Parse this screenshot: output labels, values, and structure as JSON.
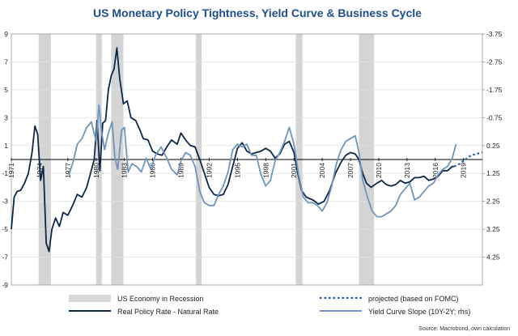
{
  "chart_data": {
    "type": "line",
    "title": "US Monetary Policy Tightness, Yield Curve & Business Cycle",
    "source": "Source: Macrobond, own calculation",
    "x_range": [
      1971,
      2021
    ],
    "ylim_left": [
      -9,
      9
    ],
    "ylim_right": [
      5.25,
      -3.75
    ],
    "x_ticks": [
      "1971",
      "1974",
      "1977",
      "1980",
      "1983",
      "1986",
      "1989",
      "1992",
      "1995",
      "1998",
      "2001",
      "2004",
      "2007",
      "2010",
      "2013",
      "2016",
      "2019"
    ],
    "y_ticks_left": [
      "9",
      "7",
      "5",
      "3",
      "1",
      "-1",
      "-3",
      "-5",
      "-7",
      "-9"
    ],
    "y_ticks_right": [
      "-3.75",
      "-2.75",
      "-1.75",
      "-0.75",
      "0.25",
      "1.25",
      "2.25",
      "3.25",
      "4.25"
    ],
    "grid": true,
    "legend_position": "bottom",
    "recessions": [
      [
        1973.9,
        1975.2
      ],
      [
        1980.0,
        1980.6
      ],
      [
        1981.6,
        1982.9
      ],
      [
        1990.6,
        1991.2
      ],
      [
        2001.2,
        2001.9
      ],
      [
        2007.9,
        2009.5
      ]
    ],
    "series": [
      {
        "name": "Real Policy Rate - Natural Rate",
        "axis": "left",
        "color": "#0d2748",
        "points": [
          [
            1971,
            -5.0
          ],
          [
            1971.3,
            -2.7
          ],
          [
            1971.6,
            -2.3
          ],
          [
            1972.0,
            -2.2
          ],
          [
            1972.4,
            -1.7
          ],
          [
            1972.8,
            -1.0
          ],
          [
            1973.2,
            0.5
          ],
          [
            1973.5,
            2.4
          ],
          [
            1973.8,
            1.8
          ],
          [
            1974.1,
            -1.5
          ],
          [
            1974.4,
            -0.5
          ],
          [
            1974.7,
            -6.0
          ],
          [
            1975.0,
            -6.6
          ],
          [
            1975.3,
            -5.0
          ],
          [
            1975.7,
            -4.2
          ],
          [
            1976.1,
            -4.8
          ],
          [
            1976.5,
            -3.8
          ],
          [
            1977.0,
            -4.0
          ],
          [
            1977.5,
            -3.3
          ],
          [
            1978.0,
            -2.5
          ],
          [
            1978.5,
            -2.7
          ],
          [
            1979.0,
            -2.0
          ],
          [
            1979.4,
            -1.0
          ],
          [
            1979.8,
            0.0
          ],
          [
            1980.1,
            2.8
          ],
          [
            1980.4,
            -0.8
          ],
          [
            1980.7,
            2.6
          ],
          [
            1981.0,
            2.8
          ],
          [
            1981.3,
            5.0
          ],
          [
            1981.6,
            6.0
          ],
          [
            1981.9,
            6.5
          ],
          [
            1982.2,
            8.0
          ],
          [
            1982.5,
            5.8
          ],
          [
            1982.9,
            4.0
          ],
          [
            1983.3,
            4.2
          ],
          [
            1983.7,
            3.0
          ],
          [
            1984.2,
            2.8
          ],
          [
            1984.6,
            2.2
          ],
          [
            1985.0,
            1.5
          ],
          [
            1985.5,
            1.4
          ],
          [
            1986.0,
            0.6
          ],
          [
            1986.5,
            0.4
          ],
          [
            1987.0,
            0.3
          ],
          [
            1987.5,
            0.9
          ],
          [
            1988.0,
            1.4
          ],
          [
            1988.6,
            1.1
          ],
          [
            1989.0,
            1.9
          ],
          [
            1989.5,
            1.4
          ],
          [
            1990.0,
            1.0
          ],
          [
            1990.5,
            0.9
          ],
          [
            1991.0,
            0.0
          ],
          [
            1991.5,
            -1.0
          ],
          [
            1992.0,
            -2.0
          ],
          [
            1992.5,
            -2.5
          ],
          [
            1993.0,
            -2.6
          ],
          [
            1993.5,
            -2.5
          ],
          [
            1994.0,
            -1.8
          ],
          [
            1994.5,
            -0.5
          ],
          [
            1995.0,
            0.8
          ],
          [
            1995.5,
            1.2
          ],
          [
            1996.0,
            0.6
          ],
          [
            1996.5,
            0.4
          ],
          [
            1997.0,
            0.5
          ],
          [
            1997.5,
            0.6
          ],
          [
            1998.0,
            0.8
          ],
          [
            1998.5,
            0.6
          ],
          [
            1999.0,
            0.1
          ],
          [
            1999.5,
            0.4
          ],
          [
            2000.0,
            1.1
          ],
          [
            2000.5,
            1.3
          ],
          [
            2001.0,
            0.5
          ],
          [
            2001.4,
            -1.0
          ],
          [
            2001.8,
            -2.2
          ],
          [
            2002.3,
            -2.7
          ],
          [
            2003.0,
            -2.9
          ],
          [
            2003.6,
            -3.2
          ],
          [
            2004.2,
            -3.0
          ],
          [
            2004.8,
            -2.2
          ],
          [
            2005.4,
            -1.0
          ],
          [
            2006.0,
            -0.2
          ],
          [
            2006.5,
            0.3
          ],
          [
            2007.0,
            0.5
          ],
          [
            2007.5,
            0.4
          ],
          [
            2007.9,
            0.0
          ],
          [
            2008.3,
            -1.0
          ],
          [
            2008.7,
            -1.7
          ],
          [
            2009.2,
            -2.0
          ],
          [
            2009.8,
            -1.7
          ],
          [
            2010.3,
            -1.5
          ],
          [
            2010.8,
            -1.8
          ],
          [
            2011.3,
            -1.9
          ],
          [
            2011.8,
            -1.8
          ],
          [
            2012.3,
            -1.5
          ],
          [
            2012.8,
            -1.7
          ],
          [
            2013.3,
            -1.6
          ],
          [
            2013.8,
            -1.3
          ],
          [
            2014.3,
            -1.3
          ],
          [
            2014.8,
            -1.2
          ],
          [
            2015.3,
            -1.5
          ],
          [
            2015.8,
            -1.4
          ],
          [
            2016.3,
            -1.2
          ],
          [
            2016.8,
            -0.8
          ],
          [
            2017.3,
            -0.8
          ],
          [
            2017.8,
            -0.5
          ],
          [
            2018.0,
            -0.5
          ]
        ]
      },
      {
        "name": "Yield Curve Slope (10Y-2Y; rhs)",
        "axis": "right",
        "color": "#6f94bd",
        "points": [
          [
            1977.1,
            1.3
          ],
          [
            1977.5,
            0.9
          ],
          [
            1978.0,
            0.2
          ],
          [
            1978.5,
            0.0
          ],
          [
            1979.0,
            -0.4
          ],
          [
            1979.5,
            -0.6
          ],
          [
            1980.0,
            0.1
          ],
          [
            1980.3,
            -1.2
          ],
          [
            1980.6,
            -0.2
          ],
          [
            1980.9,
            0.4
          ],
          [
            1981.3,
            -0.2
          ],
          [
            1981.7,
            -0.6
          ],
          [
            1982.0,
            0.7
          ],
          [
            1982.3,
            1.1
          ],
          [
            1982.7,
            -0.3
          ],
          [
            1983.0,
            -0.4
          ],
          [
            1983.4,
            1.2
          ],
          [
            1983.8,
            0.9
          ],
          [
            1984.3,
            1.0
          ],
          [
            1984.8,
            1.2
          ],
          [
            1985.3,
            0.7
          ],
          [
            1985.8,
            1.1
          ],
          [
            1986.3,
            0.6
          ],
          [
            1986.9,
            0.3
          ],
          [
            1987.5,
            0.7
          ],
          [
            1988.0,
            1.1
          ],
          [
            1988.6,
            1.3
          ],
          [
            1989.0,
            0.8
          ],
          [
            1989.5,
            0.5
          ],
          [
            1990.0,
            0.6
          ],
          [
            1990.5,
            1.0
          ],
          [
            1991.0,
            1.9
          ],
          [
            1991.5,
            2.3
          ],
          [
            1992.0,
            2.4
          ],
          [
            1992.5,
            2.4
          ],
          [
            1993.0,
            2.0
          ],
          [
            1993.5,
            1.7
          ],
          [
            1994.0,
            1.2
          ],
          [
            1994.5,
            0.4
          ],
          [
            1995.0,
            0.2
          ],
          [
            1995.5,
            0.3
          ],
          [
            1996.0,
            0.2
          ],
          [
            1996.5,
            0.6
          ],
          [
            1997.0,
            0.6
          ],
          [
            1997.5,
            1.3
          ],
          [
            1998.0,
            1.7
          ],
          [
            1998.5,
            1.5
          ],
          [
            1999.0,
            0.8
          ],
          [
            1999.5,
            0.5
          ],
          [
            2000.0,
            0.1
          ],
          [
            2000.5,
            -0.4
          ],
          [
            2001.0,
            0.2
          ],
          [
            2001.5,
            1.3
          ],
          [
            2002.0,
            2.1
          ],
          [
            2002.5,
            2.3
          ],
          [
            2003.0,
            2.3
          ],
          [
            2003.5,
            2.4
          ],
          [
            2004.0,
            2.6
          ],
          [
            2004.5,
            2.3
          ],
          [
            2005.0,
            1.7
          ],
          [
            2005.5,
            0.9
          ],
          [
            2006.0,
            0.4
          ],
          [
            2006.5,
            0.1
          ],
          [
            2007.0,
            0.0
          ],
          [
            2007.5,
            -0.1
          ],
          [
            2007.9,
            0.5
          ],
          [
            2008.3,
            1.5
          ],
          [
            2008.8,
            2.1
          ],
          [
            2009.3,
            2.6
          ],
          [
            2009.8,
            2.8
          ],
          [
            2010.3,
            2.8
          ],
          [
            2010.8,
            2.7
          ],
          [
            2011.3,
            2.6
          ],
          [
            2011.8,
            2.4
          ],
          [
            2012.3,
            2.0
          ],
          [
            2012.8,
            1.8
          ],
          [
            2013.3,
            1.6
          ],
          [
            2013.8,
            2.2
          ],
          [
            2014.3,
            2.1
          ],
          [
            2014.8,
            1.9
          ],
          [
            2015.3,
            1.7
          ],
          [
            2015.8,
            1.6
          ],
          [
            2016.3,
            1.3
          ],
          [
            2016.8,
            1.1
          ],
          [
            2017.3,
            1.0
          ],
          [
            2017.8,
            0.7
          ],
          [
            2018.2,
            0.2
          ]
        ]
      },
      {
        "name": "projected (based on FOMC)",
        "axis": "left",
        "color": "#1f5aa8",
        "dashed": true,
        "points": [
          [
            2018.0,
            -0.5
          ],
          [
            2018.6,
            -0.3
          ],
          [
            2019.2,
            0.0
          ],
          [
            2019.8,
            0.3
          ],
          [
            2020.4,
            0.4
          ],
          [
            2021.0,
            0.5
          ]
        ]
      }
    ],
    "legend": [
      {
        "label": "US Economy in Recession",
        "type": "rect",
        "color": "#d9d9d9"
      },
      {
        "label": "projected (based on FOMC)",
        "type": "dotted",
        "color": "#1f5aa8"
      },
      {
        "label": "Real Policy Rate - Natural Rate",
        "type": "line",
        "color": "#0d2748"
      },
      {
        "label": "Yield Curve Slope (10Y-2Y; rhs)",
        "type": "line",
        "color": "#6f94bd"
      }
    ]
  }
}
